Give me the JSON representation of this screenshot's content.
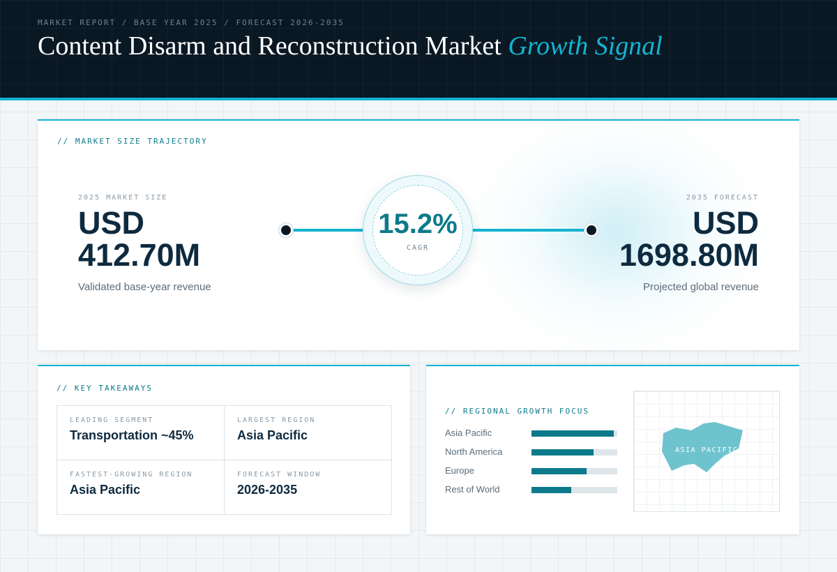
{
  "header": {
    "eyebrow": "MARKET REPORT / BASE YEAR 2025 / FORECAST 2026-2035",
    "title_main": "Content Disarm and Reconstruction Market",
    "title_accent": "Growth Signal"
  },
  "trajectory": {
    "section_label": "// MARKET SIZE TRAJECTORY",
    "base": {
      "label": "2025 MARKET SIZE",
      "currency": "USD",
      "value": "412.70M",
      "caption": "Validated base-year revenue"
    },
    "cagr": {
      "value": "15.2%",
      "label": "CAGR"
    },
    "forecast": {
      "label": "2035 FORECAST",
      "currency": "USD",
      "value": "1698.80M",
      "caption": "Projected global revenue"
    }
  },
  "takeaways": {
    "section_label": "// KEY TAKEAWAYS",
    "items": [
      {
        "label": "LEADING SEGMENT",
        "value": "Transportation ~45%"
      },
      {
        "label": "LARGEST REGION",
        "value": "Asia Pacific"
      },
      {
        "label": "FASTEST-GROWING REGION",
        "value": "Asia Pacific"
      },
      {
        "label": "FORECAST WINDOW",
        "value": "2026-2035"
      }
    ]
  },
  "regional": {
    "section_label": "// REGIONAL GROWTH FOCUS",
    "bars": [
      {
        "name": "Asia Pacific",
        "level": 0.96
      },
      {
        "name": "North America",
        "level": 0.72
      },
      {
        "name": "Europe",
        "level": 0.64
      },
      {
        "name": "Rest of World",
        "level": 0.46
      }
    ],
    "map_label": "ASIA PACIFIC"
  },
  "colors": {
    "accent": "#12b3cf",
    "teal": "#0c7a8a",
    "navy": "#0a1824",
    "map_region": "#6fc3cf"
  }
}
